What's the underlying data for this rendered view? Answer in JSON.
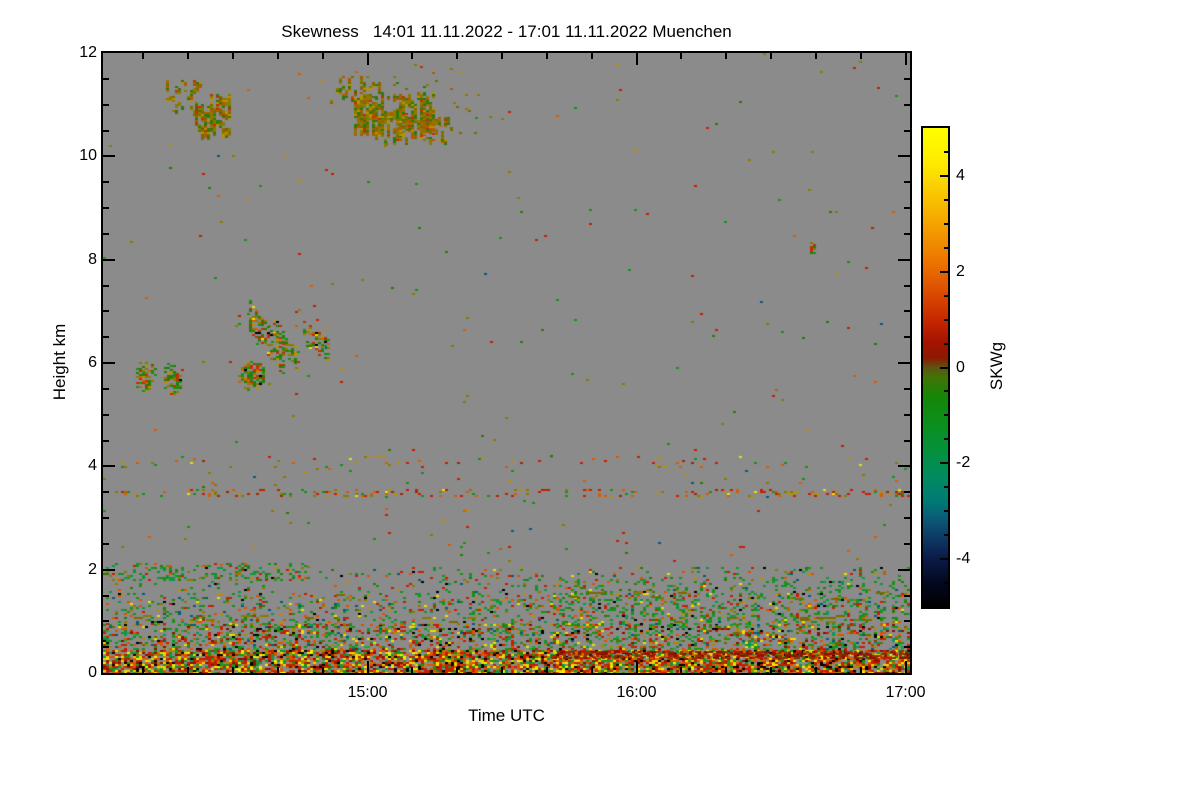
{
  "chart_data": {
    "type": "heatmap",
    "title": "Skewness   14:01 11.11.2022 - 17:01 11.11.2022 Muenchen",
    "variable": "Skewness",
    "time_start": "14:01 11.11.2022",
    "time_end": "17:01 11.11.2022",
    "site": "Muenchen",
    "xlabel": "Time UTC",
    "ylabel": "Height km",
    "x_span_min": 180,
    "x_ticks_major": [
      {
        "label": "15:00",
        "min": 59
      },
      {
        "label": "16:00",
        "min": 119
      },
      {
        "label": "17:00",
        "min": 179
      }
    ],
    "x_minor_every_min": 10,
    "ylim": [
      0,
      12
    ],
    "y_ticks_major": [
      0,
      2,
      4,
      6,
      8,
      10,
      12
    ],
    "y_minor_every_km": 0.5,
    "background_color": "#8b8b8b",
    "colorbar": {
      "label": "SKWg",
      "clim": [
        -5,
        5
      ],
      "major_ticks": [
        4,
        2,
        0,
        -2,
        -4
      ],
      "minor_tick_step": 0.5,
      "gradient": [
        [
          0.0,
          "#ffff00"
        ],
        [
          0.08,
          "#fde800"
        ],
        [
          0.12,
          "#fbd000"
        ],
        [
          0.2,
          "#f5a300"
        ],
        [
          0.28,
          "#ec7400"
        ],
        [
          0.34,
          "#dd4e00"
        ],
        [
          0.4,
          "#c62800"
        ],
        [
          0.45,
          "#a31200"
        ],
        [
          0.48,
          "#8c1a02"
        ],
        [
          0.5,
          "#5e5410"
        ],
        [
          0.52,
          "#417407"
        ],
        [
          0.56,
          "#168607"
        ],
        [
          0.62,
          "#0b8f1e"
        ],
        [
          0.68,
          "#049040"
        ],
        [
          0.73,
          "#008b60"
        ],
        [
          0.78,
          "#007a74"
        ],
        [
          0.82,
          "#0c5576"
        ],
        [
          0.86,
          "#0d3663"
        ],
        [
          0.9,
          "#0a1a46"
        ],
        [
          0.95,
          "#04081f"
        ],
        [
          1.0,
          "#000000"
        ]
      ]
    },
    "seed": 20221111,
    "palettes": {
      "bl_hot": [
        [
          "#c41e00",
          24
        ],
        [
          "#e05200",
          15
        ],
        [
          "#ecd800",
          10
        ],
        [
          "#f2f000",
          7
        ],
        [
          "#18921e",
          12
        ],
        [
          "#0a9a46",
          5
        ],
        [
          "#000000",
          10
        ],
        [
          "#8a1000",
          10
        ],
        [
          "#a88a00",
          7
        ]
      ],
      "bl_mix": [
        [
          "#16921a",
          22
        ],
        [
          "#20a83a",
          10
        ],
        [
          "#c81e00",
          17
        ],
        [
          "#e05200",
          10
        ],
        [
          "#e8e000",
          7
        ],
        [
          "#a88a00",
          7
        ],
        [
          "#6a6a00",
          6
        ],
        [
          "#000000",
          6
        ],
        [
          "#0a5a78",
          4
        ],
        [
          "#8a1000",
          6
        ],
        [
          "#05995e",
          5
        ]
      ],
      "bl_green": [
        [
          "#16921a",
          30
        ],
        [
          "#0a9a4a",
          12
        ],
        [
          "#c81e00",
          13
        ],
        [
          "#e05200",
          8
        ],
        [
          "#e8e000",
          5
        ],
        [
          "#8a7a00",
          10
        ],
        [
          "#b89000",
          6
        ],
        [
          "#000000",
          5
        ],
        [
          "#0a5a78",
          5
        ],
        [
          "#2a7a08",
          6
        ]
      ],
      "green_mix": [
        [
          "#16921a",
          45
        ],
        [
          "#0a9a4a",
          20
        ],
        [
          "#2a7a08",
          15
        ],
        [
          "#8a7a00",
          8
        ],
        [
          "#c81e00",
          7
        ],
        [
          "#e05200",
          5
        ]
      ],
      "brown_line": [
        [
          "#8a1000",
          35
        ],
        [
          "#a02800",
          25
        ],
        [
          "#7a3800",
          20
        ],
        [
          "#c81e00",
          12
        ],
        [
          "#d85c00",
          8
        ]
      ],
      "olive": [
        [
          "#7a6a00",
          70
        ],
        [
          "#8a7a00",
          30
        ]
      ],
      "sparse_mix": [
        [
          "#8a7a00",
          25
        ],
        [
          "#16921a",
          20
        ],
        [
          "#c81e00",
          20
        ],
        [
          "#d85c00",
          12
        ],
        [
          "#2a7a08",
          10
        ],
        [
          "#0a5a78",
          5
        ],
        [
          "#b89000",
          8
        ]
      ],
      "line_mix": [
        [
          "#c81e00",
          28
        ],
        [
          "#d85c00",
          20
        ],
        [
          "#8a7a00",
          20
        ],
        [
          "#16921a",
          12
        ],
        [
          "#b89000",
          10
        ],
        [
          "#e8e000",
          5
        ],
        [
          "#a02800",
          5
        ]
      ],
      "cloud_mix": [
        [
          "#2a7a08",
          25
        ],
        [
          "#16921a",
          15
        ],
        [
          "#c03000",
          20
        ],
        [
          "#8a7a00",
          20
        ],
        [
          "#d06000",
          8
        ],
        [
          "#b89000",
          6
        ],
        [
          "#000000",
          3
        ],
        [
          "#e8e000",
          3
        ]
      ],
      "cirrus_mix": [
        [
          "#8a7a00",
          30
        ],
        [
          "#7a6a00",
          18
        ],
        [
          "#b05a00",
          14
        ],
        [
          "#2a7a08",
          16
        ],
        [
          "#b89000",
          10
        ],
        [
          "#c03000",
          6
        ],
        [
          "#476e0a",
          6
        ]
      ]
    },
    "features": [
      {
        "kind": "band",
        "t": [
          0,
          180
        ],
        "h": [
          0,
          0.45
        ],
        "density": 0.82,
        "palette": "bl_hot"
      },
      {
        "kind": "band",
        "t": [
          0,
          180
        ],
        "h": [
          0.45,
          0.95
        ],
        "density": 0.38,
        "palette": "bl_mix"
      },
      {
        "kind": "band",
        "t": [
          0,
          180
        ],
        "h": [
          0.95,
          1.55
        ],
        "density": 0.19,
        "palette": "bl_green"
      },
      {
        "kind": "band",
        "t": [
          0,
          180
        ],
        "h": [
          1.55,
          2.05
        ],
        "density": 0.09,
        "palette": "bl_green"
      },
      {
        "kind": "band",
        "t": [
          0,
          45
        ],
        "h": [
          1.8,
          2.12
        ],
        "density": 0.2,
        "palette": "green_mix"
      },
      {
        "kind": "band",
        "t": [
          95,
          180
        ],
        "h": [
          0.9,
          1.85
        ],
        "density": 0.1,
        "palette": "green_mix"
      },
      {
        "kind": "band",
        "t": [
          100,
          180
        ],
        "h": [
          0.3,
          0.42
        ],
        "density": 0.6,
        "palette": "brown_line"
      },
      {
        "kind": "band",
        "t": [
          3,
          178
        ],
        "h": [
          1.0,
          1.12
        ],
        "density": 0.045,
        "palette": "olive",
        "cell": [
          9,
          2
        ]
      },
      {
        "kind": "band",
        "t": [
          40,
          178
        ],
        "h": [
          1.45,
          1.57
        ],
        "density": 0.04,
        "palette": "olive",
        "cell": [
          9,
          2
        ]
      },
      {
        "kind": "band",
        "t": [
          0,
          180
        ],
        "h": [
          2.05,
          3.42
        ],
        "density": 0.006,
        "palette": "sparse_mix"
      },
      {
        "kind": "band",
        "t": [
          0,
          180
        ],
        "h": [
          3.44,
          3.56
        ],
        "density": 0.17,
        "palette": "line_mix"
      },
      {
        "kind": "band",
        "t": [
          0,
          180
        ],
        "h": [
          3.6,
          4.0
        ],
        "density": 0.012,
        "palette": "sparse_mix"
      },
      {
        "kind": "band",
        "t": [
          0,
          180
        ],
        "h": [
          4.0,
          4.2
        ],
        "density": 0.04,
        "palette": "line_mix"
      },
      {
        "kind": "band",
        "t": [
          0,
          180
        ],
        "h": [
          4.2,
          12
        ],
        "density": 0.0026,
        "palette": "sparse_mix"
      },
      {
        "kind": "blob",
        "c": [
          9.3,
          5.75
        ],
        "rt": 2.5,
        "rh": 0.3,
        "density": 0.85,
        "palette": "cloud_mix"
      },
      {
        "kind": "blob",
        "c": [
          15.3,
          5.72
        ],
        "rt": 2.3,
        "rh": 0.32,
        "density": 0.8,
        "palette": "cloud_mix"
      },
      {
        "kind": "blob",
        "c": [
          33,
          5.78
        ],
        "rt": 3.0,
        "rh": 0.3,
        "density": 0.85,
        "palette": "cloud_mix"
      },
      {
        "kind": "diag",
        "from": [
          32.5,
          6.92
        ],
        "to": [
          40.5,
          6.0
        ],
        "thick": 0.3,
        "density": 0.5,
        "palette": "cloud_mix"
      },
      {
        "kind": "diag",
        "from": [
          38,
          6.7
        ],
        "to": [
          43.5,
          6.02
        ],
        "thick": 0.2,
        "density": 0.45,
        "palette": "cloud_mix"
      },
      {
        "kind": "diag",
        "from": [
          44.5,
          6.6
        ],
        "to": [
          50.5,
          6.2
        ],
        "thick": 0.22,
        "density": 0.45,
        "palette": "cloud_mix"
      },
      {
        "kind": "band",
        "t": [
          28,
          54
        ],
        "h": [
          5.4,
          7.05
        ],
        "density": 0.01,
        "palette": "sparse_mix"
      },
      {
        "kind": "streaks",
        "t": [
          14,
          22
        ],
        "h": [
          10.9,
          11.52
        ],
        "density": 0.3,
        "palette": "cirrus_mix",
        "run": [
          1,
          3
        ]
      },
      {
        "kind": "streaks",
        "t": [
          20.5,
          28
        ],
        "h": [
          10.45,
          11.2
        ],
        "density": 0.55,
        "palette": "cirrus_mix",
        "run": [
          2,
          5
        ]
      },
      {
        "kind": "streaks",
        "t": [
          50,
          62
        ],
        "h": [
          11.0,
          11.55
        ],
        "density": 0.28,
        "palette": "cirrus_mix",
        "run": [
          1,
          3
        ]
      },
      {
        "kind": "streaks",
        "t": [
          56,
          74
        ],
        "h": [
          10.55,
          11.25
        ],
        "density": 0.62,
        "palette": "cirrus_mix",
        "run": [
          2,
          6
        ]
      },
      {
        "kind": "streaks",
        "t": [
          62,
          78
        ],
        "h": [
          10.3,
          10.88
        ],
        "density": 0.4,
        "palette": "cirrus_mix",
        "run": [
          1,
          4
        ]
      },
      {
        "kind": "band",
        "t": [
          48,
          80
        ],
        "h": [
          11.3,
          11.78
        ],
        "density": 0.018,
        "palette": "cirrus_mix"
      },
      {
        "kind": "band",
        "t": [
          74,
          92
        ],
        "h": [
          10.35,
          11.2
        ],
        "density": 0.012,
        "palette": "cirrus_mix"
      },
      {
        "kind": "blob",
        "c": [
          158,
          8.25
        ],
        "rt": 1.0,
        "rh": 0.14,
        "density": 0.85,
        "palette": "cloud_mix"
      }
    ]
  }
}
